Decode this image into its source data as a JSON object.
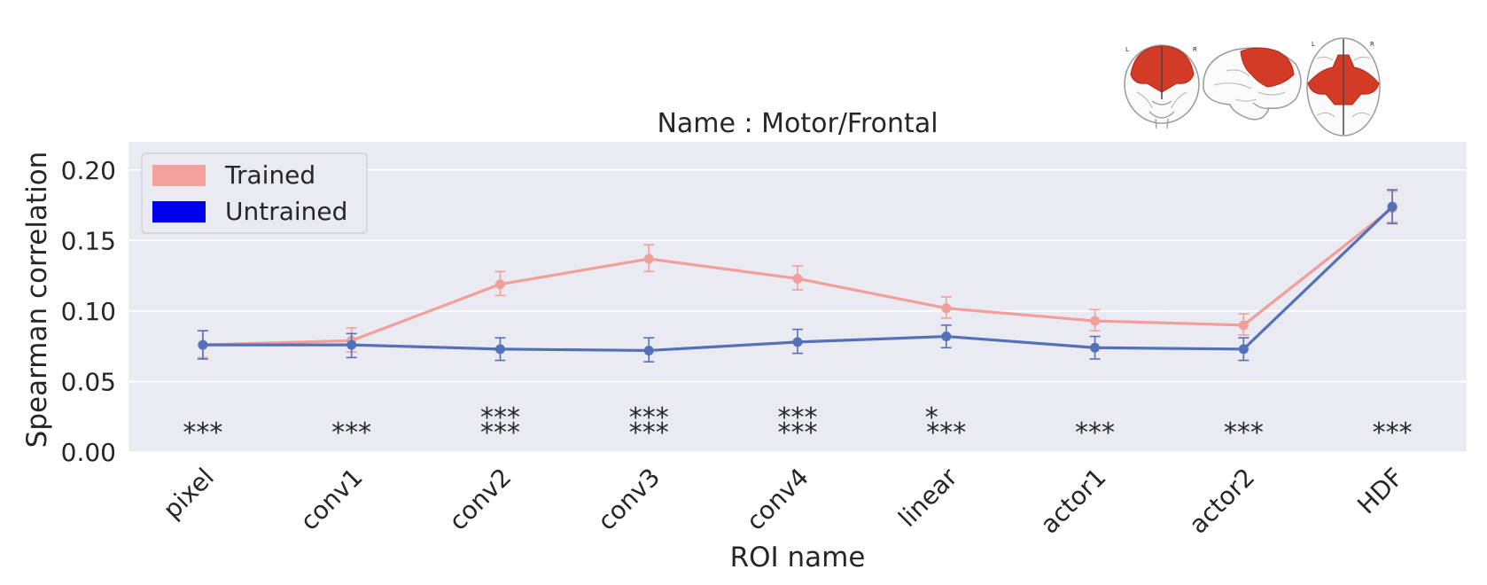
{
  "chart_data": {
    "type": "line",
    "title": "Name : Motor/Frontal",
    "xlabel": "ROI name",
    "ylabel": "Spearman correlation",
    "categories": [
      "pixel",
      "conv1",
      "conv2",
      "conv3",
      "conv4",
      "linear",
      "actor1",
      "actor2",
      "HDF"
    ],
    "ylim": [
      0,
      0.22
    ],
    "yticks": [
      0.0,
      0.05,
      0.1,
      0.15,
      0.2
    ],
    "ytick_labels": [
      "0.00",
      "0.05",
      "0.10",
      "0.15",
      "0.20"
    ],
    "grid": true,
    "legend_position": "top-left",
    "series": [
      {
        "name": "Trained",
        "legend_color": "#f4a09b",
        "color": "#f29f9b",
        "values": [
          0.076,
          0.079,
          0.119,
          0.137,
          0.123,
          0.102,
          0.093,
          0.09,
          0.173
        ],
        "err_low": [
          0.067,
          0.071,
          0.111,
          0.128,
          0.115,
          0.095,
          0.086,
          0.083,
          0.163
        ],
        "err_high": [
          0.086,
          0.088,
          0.128,
          0.147,
          0.132,
          0.11,
          0.101,
          0.098,
          0.185
        ]
      },
      {
        "name": "Untrained",
        "legend_color": "#0000ee",
        "color": "#5471b8",
        "values": [
          0.076,
          0.076,
          0.073,
          0.072,
          0.078,
          0.082,
          0.074,
          0.073,
          0.174
        ],
        "err_low": [
          0.066,
          0.067,
          0.065,
          0.064,
          0.07,
          0.074,
          0.066,
          0.065,
          0.162
        ],
        "err_high": [
          0.086,
          0.084,
          0.081,
          0.081,
          0.087,
          0.09,
          0.082,
          0.081,
          0.186
        ]
      }
    ],
    "annotations": [
      {
        "category": "pixel",
        "top": "",
        "bottom": "***"
      },
      {
        "category": "conv1",
        "top": "",
        "bottom": "***"
      },
      {
        "category": "conv2",
        "top": "***",
        "bottom": "***"
      },
      {
        "category": "conv3",
        "top": "***",
        "bottom": "***"
      },
      {
        "category": "conv4",
        "top": "***",
        "bottom": "***"
      },
      {
        "category": "linear",
        "top": "*",
        "bottom": "***"
      },
      {
        "category": "actor1",
        "top": "",
        "bottom": "***"
      },
      {
        "category": "actor2",
        "top": "",
        "bottom": "***"
      },
      {
        "category": "HDF",
        "top": "",
        "bottom": "***"
      }
    ],
    "inset": {
      "description_icon": "brain-glass-views-icon",
      "orientation_labels": [
        "L",
        "R"
      ],
      "highlight_color": "#d33b26"
    }
  }
}
